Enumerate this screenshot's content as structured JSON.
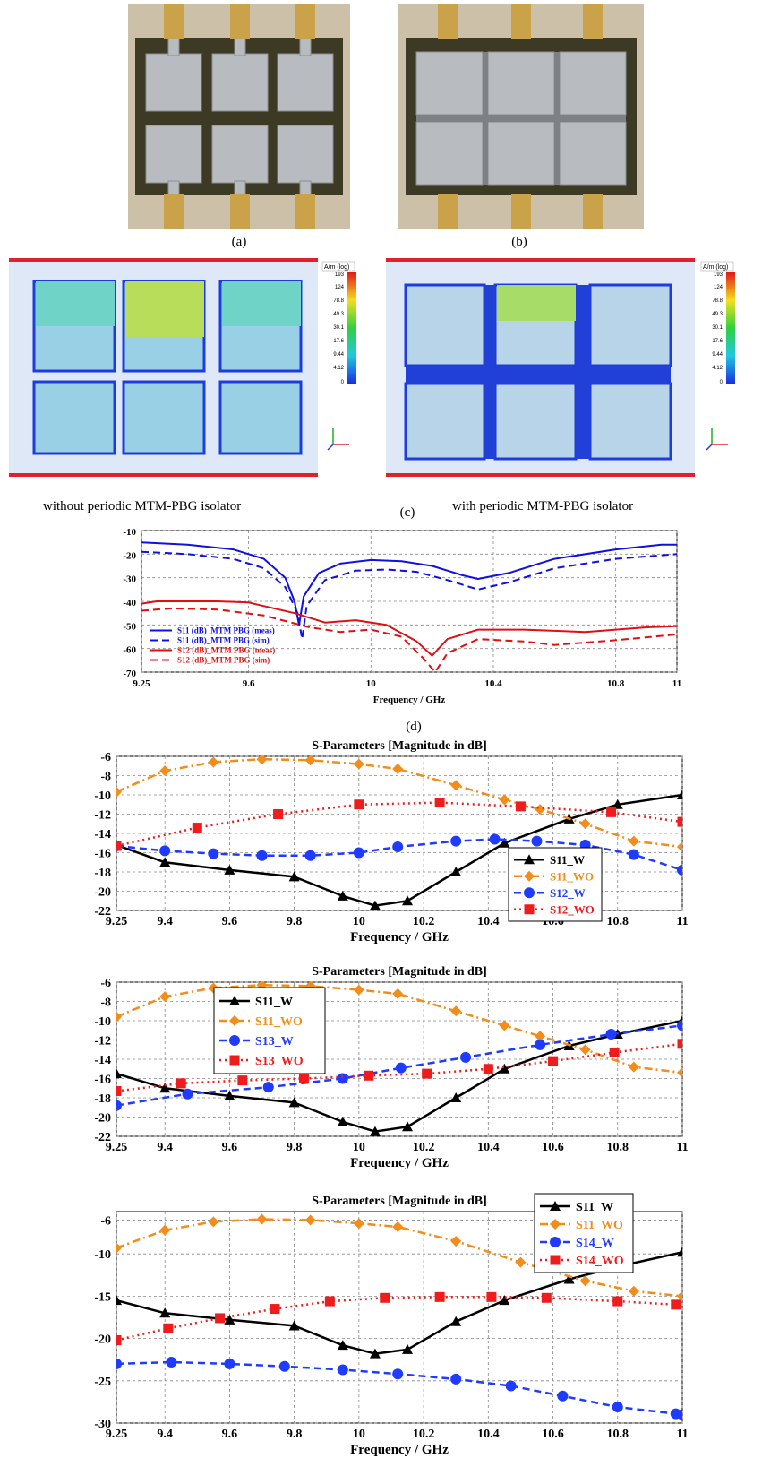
{
  "photos": [
    {
      "caption": "(a)"
    },
    {
      "caption": "(b)"
    }
  ],
  "field_maps": [
    {
      "caption": "without periodic MTM-PBG isolator",
      "colorbar_title": "A/m (log)",
      "colorbar_ticks": [
        "193",
        "124",
        "78.8",
        "49.3",
        "30.1",
        "17.6",
        "9.44",
        "4.12",
        "0"
      ]
    },
    {
      "caption": "with periodic MTM-PBG isolator",
      "colorbar_title": "A/m (log)",
      "colorbar_ticks": [
        "193",
        "124",
        "78.8",
        "49.3",
        "30.1",
        "17.6",
        "9.44",
        "4.12",
        "0"
      ]
    }
  ],
  "field_caption": "(c)",
  "chart_d_caption": "(d)",
  "chart_data": [
    {
      "id": "d",
      "type": "line",
      "title": "",
      "xlabel": "Frequency / GHz",
      "ylabel": "",
      "xlim": [
        9.25,
        11
      ],
      "ylim": [
        -70,
        -10
      ],
      "xticks": [
        "9.25",
        "9.6",
        "10",
        "10.4",
        "10.8",
        "11"
      ],
      "xtick_values": [
        9.25,
        9.6,
        10,
        10.4,
        10.8,
        11
      ],
      "yticks": [
        "-10",
        "-20",
        "-30",
        "-40",
        "-50",
        "-60",
        "-70"
      ],
      "ytick_values": [
        -10,
        -20,
        -30,
        -40,
        -50,
        -60,
        -70
      ],
      "grid": true,
      "legend": "bottom-left",
      "series": [
        {
          "name": "S11 (dB)_MTM PBG (meas)",
          "color": "#1010e0",
          "dash": "solid",
          "x": [
            9.25,
            9.4,
            9.55,
            9.65,
            9.72,
            9.75,
            9.765,
            9.78,
            9.83,
            9.9,
            10,
            10.1,
            10.2,
            10.3,
            10.35,
            10.45,
            10.6,
            10.8,
            10.95,
            11
          ],
          "y": [
            -15,
            -16,
            -18,
            -22,
            -30,
            -40,
            -50,
            -38,
            -28,
            -24,
            -22.5,
            -23,
            -25,
            -29,
            -30.5,
            -28,
            -22,
            -18,
            -16,
            -16
          ]
        },
        {
          "name": "S11 (dB)_MTM PBG (sim)",
          "color": "#1010e0",
          "dash": "dashed",
          "x": [
            9.25,
            9.4,
            9.55,
            9.65,
            9.72,
            9.76,
            9.775,
            9.79,
            9.85,
            9.95,
            10.05,
            10.15,
            10.25,
            10.35,
            10.45,
            10.6,
            10.8,
            10.95,
            11
          ],
          "y": [
            -19,
            -20,
            -22,
            -26,
            -34,
            -45,
            -56,
            -42,
            -31,
            -27,
            -26.5,
            -27.5,
            -31,
            -35,
            -32,
            -26,
            -22,
            -20.5,
            -20
          ]
        },
        {
          "name": "S12 (dB)_MTM PBG (meas)",
          "color": "#e01010",
          "dash": "solid",
          "x": [
            9.25,
            9.3,
            9.5,
            9.6,
            9.75,
            9.85,
            9.95,
            10.05,
            10.15,
            10.2,
            10.25,
            10.35,
            10.5,
            10.7,
            10.9,
            11
          ],
          "y": [
            -41,
            -40,
            -40,
            -40.5,
            -45,
            -49,
            -48,
            -50,
            -57,
            -63,
            -56,
            -52,
            -52,
            -53,
            -51,
            -50.5
          ]
        },
        {
          "name": "S12 (dB)_MTM PBG (sim)",
          "color": "#e01010",
          "dash": "dashed",
          "x": [
            9.25,
            9.35,
            9.5,
            9.65,
            9.8,
            9.9,
            10,
            10.1,
            10.17,
            10.21,
            10.25,
            10.35,
            10.5,
            10.6,
            10.8,
            11
          ],
          "y": [
            -44,
            -43,
            -43.5,
            -46,
            -51,
            -53,
            -52,
            -55,
            -64,
            -70,
            -62,
            -56,
            -57,
            -58.5,
            -56.5,
            -54
          ]
        }
      ]
    },
    {
      "id": "e1",
      "type": "line",
      "title": "S-Parameters [Magnitude in dB]",
      "xlabel": "Frequency / GHz",
      "ylabel": "",
      "xlim": [
        9.25,
        11
      ],
      "ylim": [
        -22,
        -6
      ],
      "xticks": [
        "9.25",
        "9.4",
        "9.6",
        "9.8",
        "10",
        "10.2",
        "10.4",
        "10.6",
        "10.8",
        "11"
      ],
      "xtick_values": [
        9.25,
        9.4,
        9.6,
        9.8,
        10,
        10.2,
        10.4,
        10.6,
        10.8,
        11
      ],
      "yticks": [
        "-6",
        "-8",
        "-10",
        "-12",
        "-14",
        "-16",
        "-18",
        "-20",
        "-22"
      ],
      "ytick_values": [
        -6,
        -8,
        -10,
        -12,
        -14,
        -16,
        -18,
        -20,
        -22
      ],
      "grid": true,
      "legend": "bottom-right",
      "series": [
        {
          "name": "S11_W",
          "color": "#000000",
          "dash": "solid",
          "marker": "triangle",
          "x": [
            9.25,
            9.4,
            9.6,
            9.8,
            9.95,
            10.05,
            10.15,
            10.3,
            10.45,
            10.65,
            10.8,
            11
          ],
          "y": [
            -15.2,
            -17,
            -17.8,
            -18.5,
            -20.5,
            -21.5,
            -21,
            -18,
            -15,
            -12.5,
            -11,
            -10
          ]
        },
        {
          "name": "S11_WO",
          "color": "#f28c1a",
          "dash": "dashdot",
          "marker": "diamond",
          "x": [
            9.25,
            9.4,
            9.55,
            9.7,
            9.85,
            10,
            10.12,
            10.3,
            10.45,
            10.56,
            10.7,
            10.85,
            11
          ],
          "y": [
            -9.7,
            -7.5,
            -6.6,
            -6.3,
            -6.4,
            -6.8,
            -7.3,
            -9,
            -10.5,
            -11.5,
            -13,
            -14.8,
            -15.4
          ]
        },
        {
          "name": "S12_W",
          "color": "#1f3bff",
          "dash": "dashed",
          "marker": "circle",
          "x": [
            9.25,
            9.4,
            9.55,
            9.7,
            9.85,
            10,
            10.12,
            10.3,
            10.42,
            10.55,
            10.7,
            10.85,
            11
          ],
          "y": [
            -15.3,
            -15.8,
            -16.1,
            -16.3,
            -16.3,
            -16,
            -15.4,
            -14.8,
            -14.6,
            -14.8,
            -15.2,
            -16.2,
            -17.8
          ]
        },
        {
          "name": "S12_WO",
          "color": "#ee1c1c",
          "dash": "dotted",
          "marker": "square",
          "x": [
            9.25,
            9.5,
            9.75,
            10,
            10.25,
            10.5,
            10.78,
            11
          ],
          "y": [
            -15.3,
            -13.4,
            -12,
            -11,
            -10.8,
            -11.2,
            -11.8,
            -12.8
          ]
        }
      ]
    },
    {
      "id": "e2",
      "type": "line",
      "title": "S-Parameters [Magnitude in dB]",
      "xlabel": "Frequency / GHz",
      "ylabel": "",
      "xlim": [
        9.25,
        11
      ],
      "ylim": [
        -22,
        -6
      ],
      "xticks": [
        "9.25",
        "9.4",
        "9.6",
        "9.8",
        "10",
        "10.2",
        "10.4",
        "10.6",
        "10.8",
        "11"
      ],
      "xtick_values": [
        9.25,
        9.4,
        9.6,
        9.8,
        10,
        10.2,
        10.4,
        10.6,
        10.8,
        11
      ],
      "yticks": [
        "-6",
        "-8",
        "-10",
        "-12",
        "-14",
        "-16",
        "-18",
        "-20",
        "-22"
      ],
      "ytick_values": [
        -6,
        -8,
        -10,
        -12,
        -14,
        -16,
        -18,
        -20,
        -22
      ],
      "grid": true,
      "legend": "top-left",
      "series": [
        {
          "name": "S11_W",
          "color": "#000000",
          "dash": "solid",
          "marker": "triangle",
          "x": [
            9.25,
            9.4,
            9.6,
            9.8,
            9.95,
            10.05,
            10.15,
            10.3,
            10.45,
            10.65,
            10.8,
            11
          ],
          "y": [
            -15.5,
            -17,
            -17.8,
            -18.5,
            -20.5,
            -21.5,
            -21,
            -18,
            -15,
            -12.6,
            -11.4,
            -10
          ]
        },
        {
          "name": "S11_WO",
          "color": "#f28c1a",
          "dash": "dashdot",
          "marker": "diamond",
          "x": [
            9.25,
            9.4,
            9.55,
            9.7,
            9.85,
            10,
            10.12,
            10.3,
            10.45,
            10.56,
            10.7,
            10.85,
            11
          ],
          "y": [
            -9.6,
            -7.5,
            -6.6,
            -6.3,
            -6.4,
            -6.8,
            -7.2,
            -9,
            -10.5,
            -11.6,
            -13,
            -14.8,
            -15.4
          ]
        },
        {
          "name": "S13_W",
          "color": "#1f3bff",
          "dash": "dashed",
          "marker": "circle",
          "x": [
            9.25,
            9.47,
            9.72,
            9.95,
            10.13,
            10.33,
            10.56,
            10.78,
            11
          ],
          "y": [
            -18.8,
            -17.6,
            -16.9,
            -16,
            -14.9,
            -13.8,
            -12.5,
            -11.4,
            -10.5
          ]
        },
        {
          "name": "S13_WO",
          "color": "#ee1c1c",
          "dash": "dotted",
          "marker": "square",
          "x": [
            9.25,
            9.45,
            9.64,
            9.83,
            10.03,
            10.21,
            10.4,
            10.6,
            10.79,
            11
          ],
          "y": [
            -17.3,
            -16.5,
            -16.2,
            -16,
            -15.7,
            -15.5,
            -15,
            -14.2,
            -13.3,
            -12.4
          ]
        }
      ]
    },
    {
      "id": "e3",
      "type": "line",
      "title": "S-Parameters [Magnitude in dB]",
      "xlabel": "Frequency / GHz",
      "ylabel": "",
      "xlim": [
        9.25,
        11
      ],
      "ylim": [
        -30,
        -5
      ],
      "xticks": [
        "9.25",
        "9.4",
        "9.6",
        "9.8",
        "10",
        "10.2",
        "10.4",
        "10.6",
        "10.8",
        "11"
      ],
      "xtick_values": [
        9.25,
        9.4,
        9.6,
        9.8,
        10,
        10.2,
        10.4,
        10.6,
        10.8,
        11
      ],
      "yticks": [
        "-6",
        "-10",
        "-15",
        "-20",
        "-25",
        "-30"
      ],
      "ytick_values": [
        -6,
        -10,
        -15,
        -20,
        -25,
        -30
      ],
      "grid": true,
      "legend": "top-right",
      "series": [
        {
          "name": "S11_W",
          "color": "#000000",
          "dash": "solid",
          "marker": "triangle",
          "x": [
            9.25,
            9.4,
            9.6,
            9.8,
            9.95,
            10.05,
            10.15,
            10.3,
            10.45,
            10.65,
            10.8,
            11
          ],
          "y": [
            -15.5,
            -17,
            -17.8,
            -18.5,
            -20.8,
            -21.8,
            -21.3,
            -18,
            -15.5,
            -13,
            -11.5,
            -9.8
          ]
        },
        {
          "name": "S11_WO",
          "color": "#f28c1a",
          "dash": "dashdot",
          "marker": "diamond",
          "x": [
            9.25,
            9.4,
            9.55,
            9.7,
            9.85,
            10,
            10.12,
            10.3,
            10.5,
            10.7,
            10.85,
            11
          ],
          "y": [
            -9.3,
            -7.2,
            -6.2,
            -5.9,
            -6,
            -6.4,
            -6.8,
            -8.5,
            -11,
            -13.2,
            -14.4,
            -15
          ]
        },
        {
          "name": "S14_W",
          "color": "#1f3bff",
          "dash": "dashed",
          "marker": "circle",
          "x": [
            9.25,
            9.42,
            9.6,
            9.77,
            9.95,
            10.12,
            10.3,
            10.47,
            10.63,
            10.8,
            10.98,
            11
          ],
          "y": [
            -23,
            -22.8,
            -23,
            -23.3,
            -23.7,
            -24.2,
            -24.8,
            -25.6,
            -26.8,
            -28.1,
            -28.9,
            -29
          ]
        },
        {
          "name": "S14_WO",
          "color": "#ee1c1c",
          "dash": "dotted",
          "marker": "square",
          "x": [
            9.25,
            9.41,
            9.57,
            9.74,
            9.91,
            10.08,
            10.25,
            10.41,
            10.58,
            10.8,
            10.98
          ],
          "y": [
            -20.2,
            -18.8,
            -17.6,
            -16.5,
            -15.6,
            -15.2,
            -15.1,
            -15.1,
            -15.2,
            -15.6,
            -16
          ]
        }
      ]
    }
  ]
}
